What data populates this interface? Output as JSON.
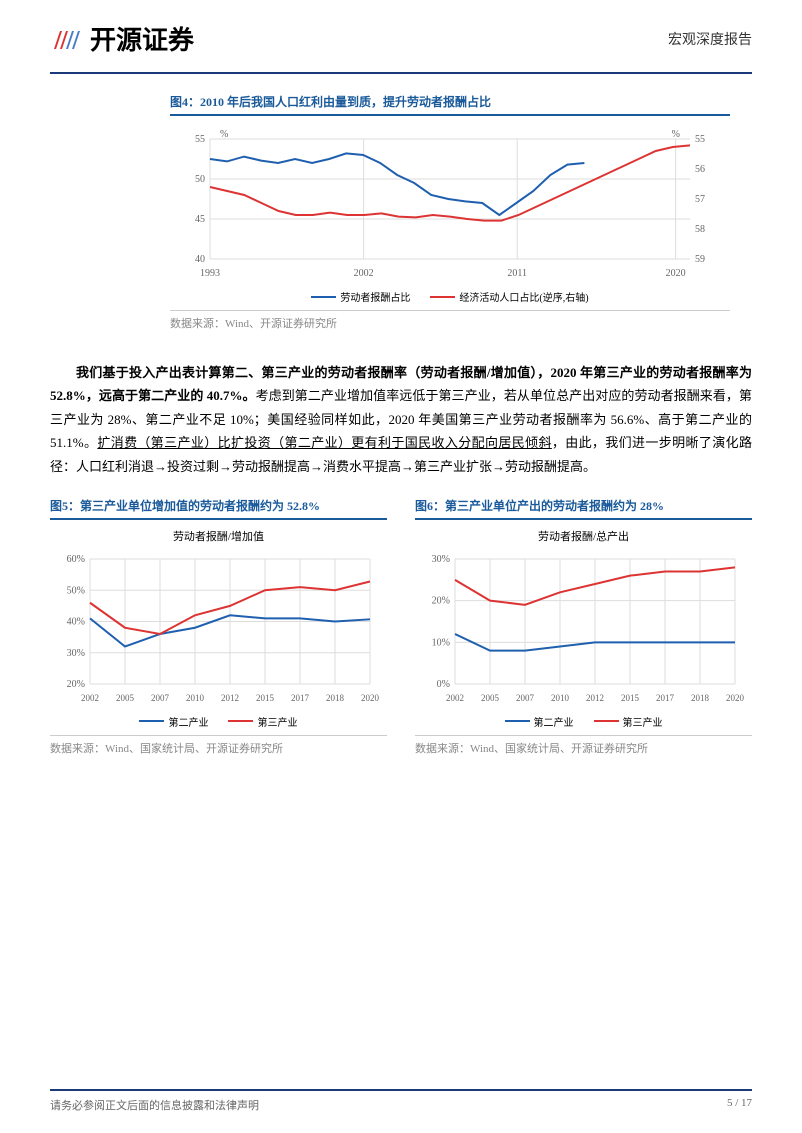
{
  "header": {
    "logo_text": "开源证券",
    "doc_type": "宏观深度报告"
  },
  "chart4": {
    "title": "图4：2010 年后我国人口红利由量到质，提升劳动者报酬占比",
    "type": "line",
    "x_labels": [
      "1993",
      "2002",
      "2011",
      "2020"
    ],
    "x_positions": [
      0,
      0.32,
      0.64,
      0.97
    ],
    "left_axis": {
      "label": "%",
      "min": 40,
      "max": 55,
      "ticks": [
        40,
        45,
        50,
        55
      ]
    },
    "right_axis": {
      "label": "%",
      "min": 55,
      "max": 59,
      "ticks": [
        55,
        56,
        57,
        58,
        59
      ],
      "inverted": true
    },
    "series1": {
      "name": "劳动者报酬占比",
      "color": "#1f5fb0",
      "data": [
        52.5,
        52.2,
        52.8,
        52.3,
        52.0,
        52.5,
        52.0,
        52.5,
        53.2,
        53.0,
        52.0,
        50.5,
        49.5,
        48.0,
        47.5,
        47.2,
        47.0,
        45.5,
        47.0,
        48.5,
        50.5,
        51.8,
        52.0
      ]
    },
    "series2": {
      "name": "经济活动人口占比(逆序,右轴)",
      "color": "#d33",
      "data": [
        49.0,
        48.5,
        48.0,
        47.0,
        46.0,
        45.5,
        45.5,
        45.8,
        45.5,
        45.5,
        45.7,
        45.3,
        45.2,
        45.5,
        45.3,
        45.0,
        44.8,
        44.8,
        45.5,
        46.5,
        47.5,
        48.5,
        49.5,
        50.5,
        51.5,
        52.5,
        53.5,
        54.0,
        54.2
      ]
    },
    "legend1": "劳动者报酬占比",
    "legend2": "经济活动人口占比(逆序,右轴)",
    "data_source": "数据来源：Wind、开源证券研究所",
    "background": "#ffffff",
    "grid_color": "#dddddd"
  },
  "paragraph": {
    "bold_part": "我们基于投入产出表计算第二、第三产业的劳动者报酬率（劳动者报酬/增加值），2020 年第三产业的劳动者报酬率为 52.8%，远高于第二产业的 40.7%。",
    "rest1": "考虑到第二产业增加值率远低于第三产业，若从单位总产出对应的劳动者报酬来看，第三产业为 28%、第二产业不足 10%；美国经验同样如此，2020 年美国第三产业劳动者报酬率为 56.6%、高于第二产业的 51.1%。",
    "underline_part": "扩消费（第三产业）比扩投资（第二产业）更有利于国民收入分配向居民倾斜",
    "rest2": "，由此，我们进一步明晰了演化路径：人口红利消退→投资过剩→劳动报酬提高→消费水平提高→第三产业扩张→劳动报酬提高。"
  },
  "chart5": {
    "title": "图5：第三产业单位增加值的劳动者报酬约为 52.8%",
    "subtitle": "劳动者报酬/增加值",
    "type": "line",
    "x_labels": [
      "2002",
      "2005",
      "2007",
      "2010",
      "2012",
      "2015",
      "2017",
      "2018",
      "2020"
    ],
    "y_axis": {
      "min": 20,
      "max": 60,
      "ticks": [
        20,
        30,
        40,
        50,
        60
      ],
      "format": "%"
    },
    "series1": {
      "name": "第二产业",
      "color": "#1f5fb0",
      "data": [
        41,
        32,
        36,
        38,
        42,
        41,
        41,
        40,
        40.7
      ]
    },
    "series2": {
      "name": "第三产业",
      "color": "#d33",
      "data": [
        46,
        38,
        36,
        42,
        45,
        50,
        51,
        50,
        52.8
      ]
    },
    "legend1": "第二产业",
    "legend2": "第三产业",
    "data_source": "数据来源：Wind、国家统计局、开源证券研究所",
    "grid_color": "#dddddd"
  },
  "chart6": {
    "title": "图6：第三产业单位产出的劳动者报酬约为 28%",
    "subtitle": "劳动者报酬/总产出",
    "type": "line",
    "x_labels": [
      "2002",
      "2005",
      "2007",
      "2010",
      "2012",
      "2015",
      "2017",
      "2018",
      "2020"
    ],
    "y_axis": {
      "min": 0,
      "max": 30,
      "ticks": [
        0,
        10,
        20,
        30
      ],
      "format": "%"
    },
    "series1": {
      "name": "第二产业",
      "color": "#1f5fb0",
      "data": [
        12,
        8,
        8,
        9,
        10,
        10,
        10,
        10,
        10
      ]
    },
    "series2": {
      "name": "第三产业",
      "color": "#d33",
      "data": [
        25,
        20,
        19,
        22,
        24,
        26,
        27,
        27,
        28
      ]
    },
    "legend1": "第二产业",
    "legend2": "第三产业",
    "data_source": "数据来源：Wind、国家统计局、开源证券研究所",
    "grid_color": "#dddddd"
  },
  "footer": {
    "left": "请务必参阅正文后面的信息披露和法律声明",
    "right": "5 / 17"
  }
}
